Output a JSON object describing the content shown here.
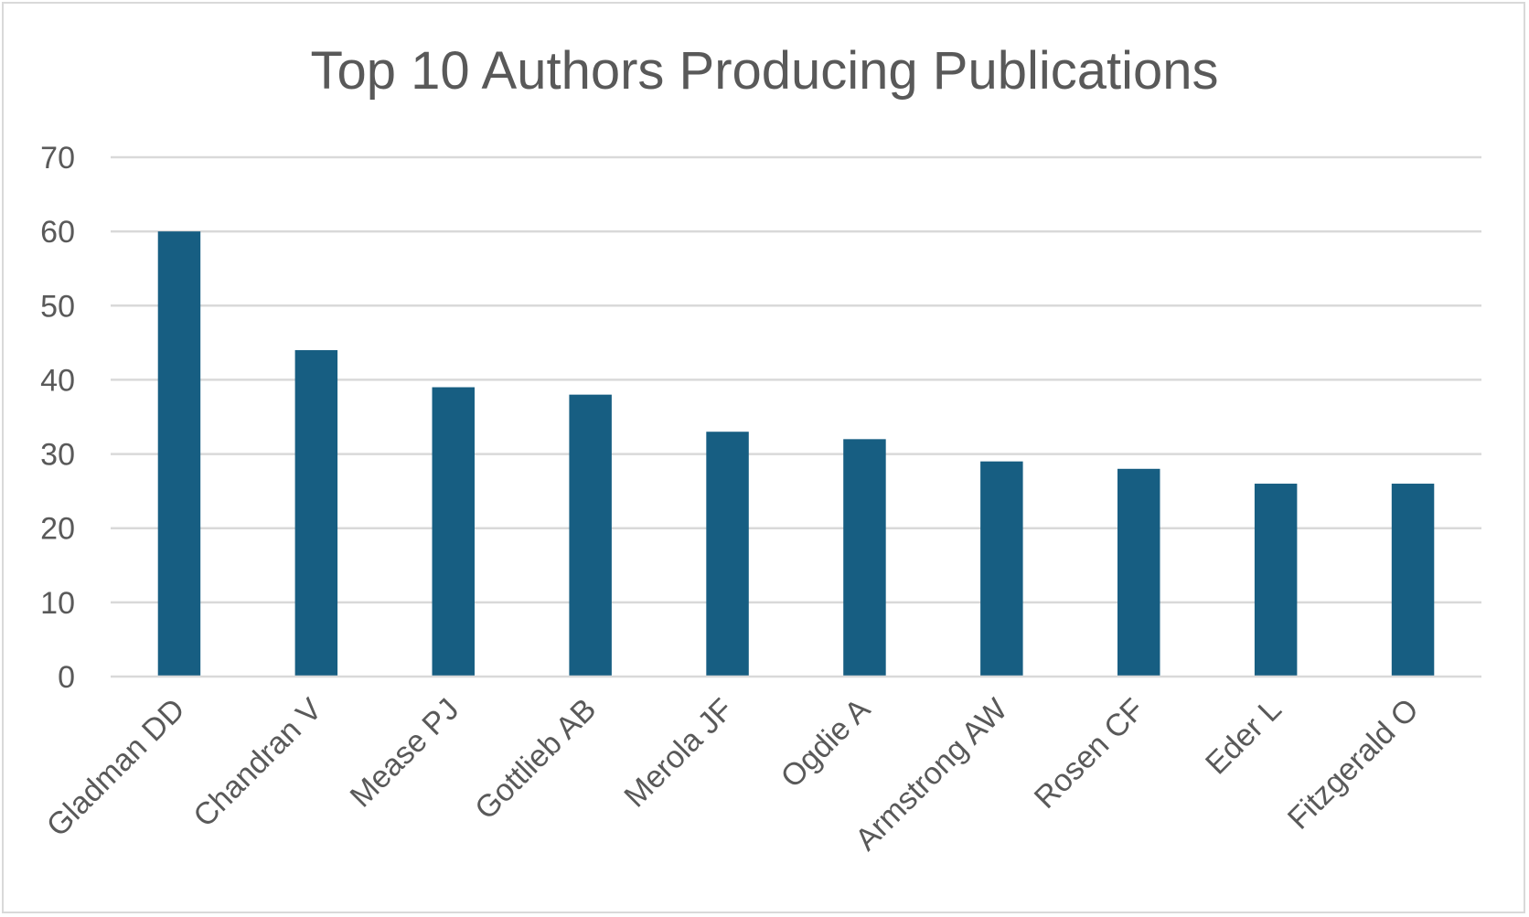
{
  "chart_data": {
    "type": "bar",
    "title": "Top 10 Authors Producing Publications",
    "xlabel": "",
    "ylabel": "",
    "categories": [
      "Gladman DD",
      "Chandran V",
      "Mease PJ",
      "Gottlieb AB",
      "Merola JF",
      "Ogdie A",
      "Armstrong AW",
      "Rosen CF",
      "Eder L",
      "Fitzgerald O"
    ],
    "values": [
      60,
      44,
      39,
      38,
      33,
      32,
      29,
      28,
      26,
      26
    ],
    "ylim": [
      0,
      70
    ],
    "yticks": [
      0,
      10,
      20,
      30,
      40,
      50,
      60,
      70
    ],
    "grid": true,
    "legend": "none",
    "bar_color": "#175e82"
  }
}
